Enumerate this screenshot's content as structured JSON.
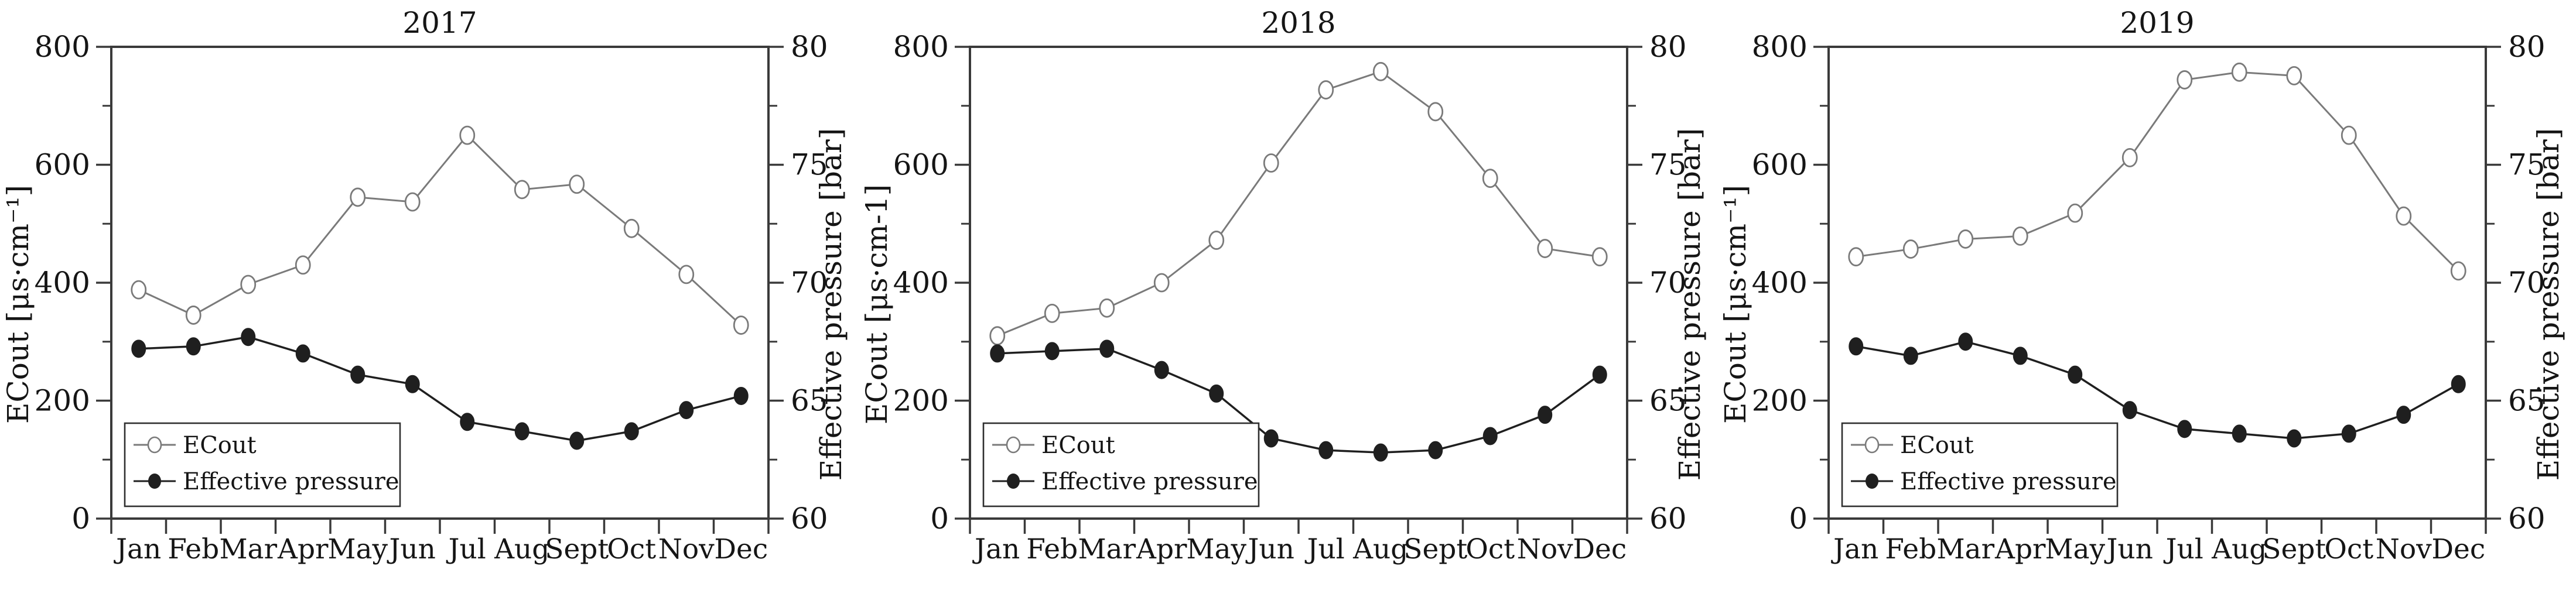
{
  "figure": {
    "background": "#ffffff",
    "description_colors": {
      "spine": "#3a3a3a",
      "ecout_line": "#7a7a7a",
      "pressure_line": "#1f1f1f",
      "legend_border": "#2f2f2f",
      "text": "#151515"
    }
  },
  "chart_data": [
    {
      "type": "line",
      "title": "2017",
      "categories": [
        "Jan",
        "Feb",
        "Mar",
        "Apr",
        "May",
        "Jun",
        "Jul",
        "Aug",
        "Sept",
        "Oct",
        "Nov",
        "Dec"
      ],
      "series": [
        {
          "name": "ECout",
          "axis": "left",
          "marker": "open-circle",
          "color": "#7a7a7a",
          "values": [
            388,
            345,
            397,
            430,
            545,
            537,
            650,
            558,
            567,
            492,
            414,
            328
          ]
        },
        {
          "name": "Effective pressure",
          "axis": "right",
          "marker": "filled-circle",
          "color": "#1f1f1f",
          "values": [
            67.2,
            67.3,
            67.7,
            67.0,
            66.1,
            65.7,
            64.1,
            63.7,
            63.3,
            63.7,
            64.6,
            65.2
          ]
        }
      ],
      "left_axis": {
        "label": "ECout [μs·cm⁻¹]",
        "min": 0,
        "max": 800,
        "major_ticks": [
          0,
          200,
          400,
          600,
          800
        ],
        "minor_step": 100
      },
      "right_axis": {
        "label": "Effective pressure [bar]",
        "min": 60,
        "max": 80,
        "major_ticks": [
          60,
          65,
          70,
          75,
          80
        ],
        "minor_step": 2.5
      },
      "legend": {
        "position": "bottom-left",
        "entries": [
          "ECout",
          "Effective pressure"
        ]
      },
      "grid": "off"
    },
    {
      "type": "line",
      "title": "2018",
      "categories": [
        "Jan",
        "Feb",
        "Mar",
        "Apr",
        "May",
        "Jun",
        "Jul",
        "Aug",
        "Sept",
        "Oct",
        "Nov",
        "Dec"
      ],
      "series": [
        {
          "name": "ECout",
          "axis": "left",
          "marker": "open-circle",
          "color": "#7a7a7a",
          "values": [
            310,
            348,
            357,
            400,
            472,
            603,
            727,
            758,
            690,
            577,
            458,
            444
          ]
        },
        {
          "name": "Effective pressure",
          "axis": "right",
          "marker": "filled-circle",
          "color": "#1f1f1f",
          "values": [
            67.0,
            67.1,
            67.2,
            66.3,
            65.3,
            63.4,
            62.9,
            62.8,
            62.9,
            63.5,
            64.4,
            66.1
          ]
        }
      ],
      "left_axis": {
        "label": "ECout [μs·cm-1]",
        "min": 0,
        "max": 800,
        "major_ticks": [
          0,
          200,
          400,
          600,
          800
        ],
        "minor_step": 100
      },
      "right_axis": {
        "label": "Effective pressure [bar]",
        "min": 60,
        "max": 80,
        "major_ticks": [
          60,
          65,
          70,
          75,
          80
        ],
        "minor_step": 2.5
      },
      "legend": {
        "position": "bottom-left",
        "entries": [
          "ECout",
          "Effective pressure"
        ]
      },
      "grid": "off"
    },
    {
      "type": "line",
      "title": "2019",
      "categories": [
        "Jan",
        "Feb",
        "Mar",
        "Apr",
        "May",
        "Jun",
        "Jul",
        "Aug",
        "Sept",
        "Oct",
        "Nov",
        "Dec"
      ],
      "series": [
        {
          "name": "ECout",
          "axis": "left",
          "marker": "open-circle",
          "color": "#7a7a7a",
          "values": [
            444,
            457,
            474,
            479,
            518,
            612,
            744,
            757,
            751,
            650,
            513,
            420
          ]
        },
        {
          "name": "Effective pressure",
          "axis": "right",
          "marker": "filled-circle",
          "color": "#1f1f1f",
          "values": [
            67.3,
            66.9,
            67.5,
            66.9,
            66.1,
            64.6,
            63.8,
            63.6,
            63.4,
            63.6,
            64.4,
            65.7
          ]
        }
      ],
      "left_axis": {
        "label": "ECout [μs·cm⁻¹]",
        "min": 0,
        "max": 800,
        "major_ticks": [
          0,
          200,
          400,
          600,
          800
        ],
        "minor_step": 100
      },
      "right_axis": {
        "label": "Effective pressure [bar]",
        "min": 60,
        "max": 80,
        "major_ticks": [
          60,
          65,
          70,
          75,
          80
        ],
        "minor_step": 2.5
      },
      "legend": {
        "position": "bottom-left",
        "entries": [
          "ECout",
          "Effective pressure"
        ]
      },
      "grid": "off"
    }
  ]
}
